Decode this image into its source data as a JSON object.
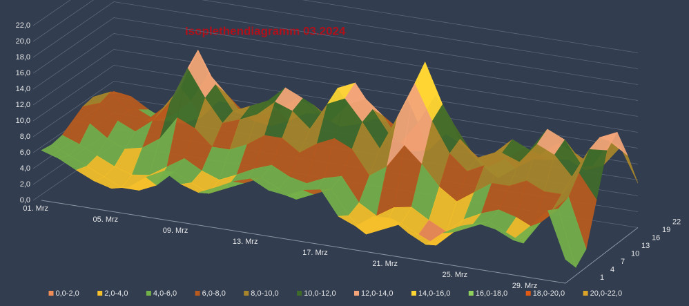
{
  "chart_data": {
    "type": "surface",
    "title": "Isoplethendiagramm 03.2024",
    "categories": [
      "01. Mrz",
      null,
      null,
      null,
      "05. Mrz",
      null,
      null,
      null,
      "09. Mrz",
      null,
      null,
      null,
      "13. Mrz",
      null,
      null,
      null,
      "17. Mrz",
      null,
      null,
      null,
      "21. Mrz",
      null,
      null,
      null,
      "25. Mrz",
      null,
      null,
      null,
      "29. Mrz",
      null,
      null
    ],
    "zlim": [
      0,
      22
    ],
    "zticks": [
      {
        "value": 0,
        "label": "0,0"
      },
      {
        "value": 2,
        "label": "2,0"
      },
      {
        "value": 4,
        "label": "4,0"
      },
      {
        "value": 6,
        "label": "6,0"
      },
      {
        "value": 8,
        "label": "8,0"
      },
      {
        "value": 10,
        "label": "10,0"
      },
      {
        "value": 12,
        "label": "12,0"
      },
      {
        "value": 14,
        "label": "14,0"
      },
      {
        "value": 16,
        "label": "16,0"
      },
      {
        "value": 18,
        "label": "18,0"
      },
      {
        "value": 20,
        "label": "20,0"
      },
      {
        "value": 22,
        "label": "22,0"
      }
    ],
    "grid": true,
    "series": [
      {
        "name": "1",
        "values": [
          6.3,
          5.6,
          4.5,
          3.5,
          2.9,
          3.4,
          5,
          6.1,
          4.8,
          4.1,
          5.1,
          6.2,
          6.9,
          5.8,
          5.5,
          6.5,
          6.9,
          3.9,
          3,
          4.6,
          4.7,
          3.2,
          2.1,
          3.9,
          5.1,
          5.8,
          5.4,
          4.4,
          6.5,
          8.8,
          3
        ]
      },
      {
        "name": "4",
        "values": [
          6,
          5,
          4,
          3,
          2,
          2,
          3,
          5,
          4,
          3,
          4,
          5,
          6,
          5,
          4,
          5,
          6,
          3,
          1,
          2,
          3,
          2,
          1,
          3,
          4,
          5,
          4,
          3,
          6,
          8,
          1
        ]
      },
      {
        "name": "7",
        "values": [
          6.2,
          5.4,
          4.3,
          3.3,
          2.6,
          2.9,
          4.3,
          5.7,
          4.5,
          3.7,
          4.7,
          5.8,
          6.6,
          5.5,
          5,
          6,
          6.6,
          3.6,
          2.3,
          3.7,
          4.1,
          2.8,
          1.7,
          3.6,
          4.7,
          5.5,
          4.9,
          3.9,
          6.3,
          8.5,
          2.3
        ]
      },
      {
        "name": "10",
        "values": [
          7,
          7,
          5.5,
          4.5,
          5,
          6.5,
          9.5,
          8.5,
          6.5,
          6.5,
          7.5,
          9,
          9,
          7.5,
          9,
          10,
          9,
          6,
          7.5,
          10.5,
          8.5,
          6,
          4.5,
          6,
          7.5,
          7.5,
          8.5,
          7.5,
          7.5,
          10.5,
          7.5
        ]
      },
      {
        "name": "13",
        "values": [
          7.8,
          8.6,
          6.7,
          5.7,
          7.4,
          10.1,
          14.7,
          11.3,
          8.5,
          9.3,
          10.3,
          12.2,
          11.4,
          9.5,
          13,
          14,
          11.4,
          8.4,
          12.7,
          17.3,
          12.9,
          9.2,
          7.3,
          8.4,
          10.3,
          9.5,
          12.1,
          11.1,
          8.7,
          12.5,
          12.7
        ]
      },
      {
        "name": "16",
        "values": [
          8,
          9,
          7,
          6,
          8,
          11,
          16,
          12,
          9,
          10,
          11,
          13,
          12,
          10,
          14,
          15,
          12,
          9,
          14,
          19,
          14,
          10,
          8,
          9,
          11,
          10,
          13,
          12,
          9,
          13,
          14
        ]
      },
      {
        "name": "19",
        "values": [
          7.4,
          7.8,
          6.1,
          5.1,
          6.2,
          8.3,
          12.1,
          9.9,
          7.5,
          7.9,
          8.9,
          10.6,
          10.2,
          8.5,
          11,
          12,
          10.2,
          7.2,
          10.1,
          13.9,
          10.7,
          7.6,
          5.9,
          7.2,
          8.9,
          8.5,
          10.3,
          9.3,
          8.1,
          11.5,
          10.1
        ]
      },
      {
        "name": "22",
        "values": [
          6.7,
          6.4,
          5.1,
          4.1,
          4.1,
          5.2,
          7.6,
          7.5,
          5.8,
          5.5,
          6.5,
          7.8,
          8.1,
          6.8,
          7.5,
          8.5,
          8.1,
          5.1,
          5.6,
          8,
          6.9,
          4.8,
          3.5,
          5.1,
          6.5,
          6.8,
          7.2,
          6.2,
          7.1,
          9.8,
          5.6
        ]
      }
    ],
    "legend": {
      "position": "bottom",
      "bands": [
        {
          "label": "0,0-2,0",
          "from": 0,
          "to": 2,
          "color": "#f08c55"
        },
        {
          "label": "2,0-4,0",
          "from": 2,
          "to": 4,
          "color": "#f5c02a"
        },
        {
          "label": "4,0-6,0",
          "from": 4,
          "to": 6,
          "color": "#74b04a"
        },
        {
          "label": "6,0-8,0",
          "from": 6,
          "to": 8,
          "color": "#b85a1e"
        },
        {
          "label": "8,0-10,0",
          "from": 8,
          "to": 10,
          "color": "#a8862a"
        },
        {
          "label": "10,0-12,0",
          "from": 10,
          "to": 12,
          "color": "#3f6b2a"
        },
        {
          "label": "12,0-14,0",
          "from": 12,
          "to": 14,
          "color": "#f4a57a"
        },
        {
          "label": "14,0-16,0",
          "from": 14,
          "to": 16,
          "color": "#ffd633"
        },
        {
          "label": "16,0-18,0",
          "from": 16,
          "to": 18,
          "color": "#8fd15c"
        },
        {
          "label": "18,0-20,0",
          "from": 18,
          "to": 20,
          "color": "#e05a14"
        },
        {
          "label": "20,0-22,0",
          "from": 20,
          "to": 22,
          "color": "#d9a528"
        }
      ]
    }
  }
}
